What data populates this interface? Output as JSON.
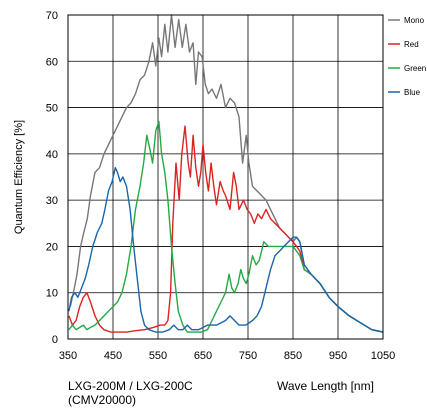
{
  "chart_data": {
    "type": "line",
    "title": "",
    "xlabel": "Wave Length [nm]",
    "ylabel": "Quantum Efficiency [%]",
    "xlim": [
      350,
      1050
    ],
    "ylim": [
      0,
      70
    ],
    "x_ticks": [
      350,
      450,
      550,
      650,
      750,
      850,
      950,
      1050
    ],
    "y_ticks": [
      0,
      10,
      20,
      30,
      40,
      50,
      60,
      70
    ],
    "grid": true,
    "legend_position": "right",
    "series": [
      {
        "name": "Mono",
        "color": "#777777",
        "points": [
          [
            355,
            7
          ],
          [
            362,
            10
          ],
          [
            370,
            14
          ],
          [
            378,
            20
          ],
          [
            385,
            23
          ],
          [
            393,
            26
          ],
          [
            400,
            31
          ],
          [
            410,
            36
          ],
          [
            420,
            37
          ],
          [
            430,
            40
          ],
          [
            440,
            42
          ],
          [
            450,
            44
          ],
          [
            460,
            46
          ],
          [
            470,
            48
          ],
          [
            480,
            50
          ],
          [
            490,
            51
          ],
          [
            500,
            53
          ],
          [
            510,
            56
          ],
          [
            520,
            57
          ],
          [
            530,
            60
          ],
          [
            538,
            64
          ],
          [
            545,
            59
          ],
          [
            552,
            65
          ],
          [
            558,
            61
          ],
          [
            565,
            68
          ],
          [
            572,
            62
          ],
          [
            580,
            70
          ],
          [
            588,
            63
          ],
          [
            596,
            69
          ],
          [
            604,
            63
          ],
          [
            612,
            68
          ],
          [
            620,
            62
          ],
          [
            628,
            64
          ],
          [
            634,
            55
          ],
          [
            640,
            62
          ],
          [
            648,
            61
          ],
          [
            655,
            55
          ],
          [
            662,
            53
          ],
          [
            670,
            54
          ],
          [
            680,
            52
          ],
          [
            690,
            55
          ],
          [
            700,
            50
          ],
          [
            710,
            52
          ],
          [
            720,
            51
          ],
          [
            730,
            48
          ],
          [
            738,
            38
          ],
          [
            746,
            44
          ],
          [
            752,
            38
          ],
          [
            760,
            33
          ],
          [
            770,
            32
          ],
          [
            780,
            31
          ],
          [
            790,
            30
          ],
          [
            800,
            28
          ],
          [
            810,
            26
          ],
          [
            820,
            24
          ],
          [
            830,
            23
          ],
          [
            840,
            22
          ],
          [
            850,
            21
          ],
          [
            858,
            22
          ],
          [
            865,
            21
          ],
          [
            875,
            16
          ],
          [
            890,
            14
          ],
          [
            910,
            12
          ],
          [
            930,
            9
          ],
          [
            950,
            7
          ],
          [
            975,
            5
          ],
          [
            1000,
            3.5
          ],
          [
            1025,
            2
          ],
          [
            1050,
            1.5
          ]
        ]
      },
      {
        "name": "Red",
        "color": "#dd2222",
        "points": [
          [
            352,
            5
          ],
          [
            360,
            3
          ],
          [
            368,
            4
          ],
          [
            376,
            7
          ],
          [
            384,
            9
          ],
          [
            392,
            10
          ],
          [
            400,
            8
          ],
          [
            410,
            5
          ],
          [
            420,
            3
          ],
          [
            430,
            2
          ],
          [
            445,
            1.5
          ],
          [
            460,
            1.5
          ],
          [
            480,
            1.5
          ],
          [
            500,
            1.8
          ],
          [
            520,
            2
          ],
          [
            540,
            2.5
          ],
          [
            555,
            3
          ],
          [
            565,
            3
          ],
          [
            572,
            4
          ],
          [
            578,
            10
          ],
          [
            583,
            25
          ],
          [
            590,
            38
          ],
          [
            597,
            30
          ],
          [
            603,
            40
          ],
          [
            610,
            46
          ],
          [
            617,
            38
          ],
          [
            622,
            35
          ],
          [
            628,
            44
          ],
          [
            634,
            37
          ],
          [
            640,
            33
          ],
          [
            645,
            36
          ],
          [
            650,
            42
          ],
          [
            656,
            36
          ],
          [
            662,
            32
          ],
          [
            668,
            38
          ],
          [
            674,
            33
          ],
          [
            680,
            29
          ],
          [
            688,
            34
          ],
          [
            695,
            32
          ],
          [
            700,
            31
          ],
          [
            710,
            28
          ],
          [
            718,
            36
          ],
          [
            724,
            33
          ],
          [
            730,
            28
          ],
          [
            740,
            30
          ],
          [
            748,
            28
          ],
          [
            756,
            27
          ],
          [
            764,
            25
          ],
          [
            772,
            27
          ],
          [
            780,
            26
          ],
          [
            790,
            28
          ],
          [
            800,
            26
          ],
          [
            810,
            25
          ],
          [
            820,
            24
          ],
          [
            830,
            23
          ],
          [
            840,
            22
          ],
          [
            850,
            21
          ],
          [
            858,
            20
          ],
          [
            865,
            19
          ],
          [
            875,
            15
          ],
          [
            890,
            14
          ],
          [
            910,
            12
          ],
          [
            930,
            9
          ],
          [
            950,
            7
          ],
          [
            975,
            5
          ],
          [
            1000,
            3.5
          ],
          [
            1025,
            2
          ],
          [
            1050,
            1.5
          ]
        ]
      },
      {
        "name": "Green",
        "color": "#22aa44",
        "points": [
          [
            352,
            2
          ],
          [
            360,
            3
          ],
          [
            368,
            2
          ],
          [
            376,
            2.5
          ],
          [
            384,
            3
          ],
          [
            392,
            2
          ],
          [
            400,
            2.5
          ],
          [
            410,
            3
          ],
          [
            420,
            4
          ],
          [
            430,
            5
          ],
          [
            440,
            6
          ],
          [
            450,
            7
          ],
          [
            460,
            8
          ],
          [
            470,
            10
          ],
          [
            480,
            14
          ],
          [
            490,
            20
          ],
          [
            500,
            28
          ],
          [
            510,
            33
          ],
          [
            518,
            38
          ],
          [
            525,
            44
          ],
          [
            532,
            41
          ],
          [
            538,
            38
          ],
          [
            545,
            45
          ],
          [
            552,
            47
          ],
          [
            558,
            40
          ],
          [
            565,
            36
          ],
          [
            572,
            30
          ],
          [
            580,
            20
          ],
          [
            588,
            12
          ],
          [
            595,
            6
          ],
          [
            605,
            3
          ],
          [
            615,
            1.5
          ],
          [
            630,
            1.5
          ],
          [
            645,
            1.5
          ],
          [
            660,
            2
          ],
          [
            670,
            4
          ],
          [
            680,
            6
          ],
          [
            690,
            8
          ],
          [
            700,
            10
          ],
          [
            708,
            14
          ],
          [
            714,
            11
          ],
          [
            720,
            10
          ],
          [
            728,
            12
          ],
          [
            734,
            15
          ],
          [
            740,
            13
          ],
          [
            746,
            12
          ],
          [
            752,
            14
          ],
          [
            760,
            18
          ],
          [
            768,
            16
          ],
          [
            775,
            17
          ],
          [
            785,
            21
          ],
          [
            795,
            20
          ],
          [
            805,
            20
          ],
          [
            815,
            20
          ],
          [
            825,
            20
          ],
          [
            835,
            20
          ],
          [
            845,
            20
          ],
          [
            850,
            20
          ],
          [
            858,
            19
          ],
          [
            865,
            18
          ],
          [
            875,
            15
          ],
          [
            890,
            14
          ],
          [
            910,
            12
          ],
          [
            930,
            9
          ],
          [
            950,
            7
          ],
          [
            975,
            5
          ],
          [
            1000,
            3.5
          ],
          [
            1025,
            2
          ],
          [
            1050,
            1.5
          ]
        ]
      },
      {
        "name": "Blue",
        "color": "#1a66aa",
        "points": [
          [
            352,
            6
          ],
          [
            358,
            9
          ],
          [
            365,
            10
          ],
          [
            372,
            9
          ],
          [
            380,
            11
          ],
          [
            388,
            13
          ],
          [
            396,
            16
          ],
          [
            405,
            20
          ],
          [
            415,
            23
          ],
          [
            425,
            25
          ],
          [
            432,
            28
          ],
          [
            440,
            32
          ],
          [
            448,
            34
          ],
          [
            455,
            37
          ],
          [
            460,
            36
          ],
          [
            466,
            34
          ],
          [
            472,
            35
          ],
          [
            480,
            33
          ],
          [
            488,
            28
          ],
          [
            496,
            20
          ],
          [
            505,
            12
          ],
          [
            512,
            6
          ],
          [
            520,
            3
          ],
          [
            530,
            2
          ],
          [
            545,
            1.5
          ],
          [
            560,
            1.5
          ],
          [
            575,
            2
          ],
          [
            585,
            3
          ],
          [
            595,
            2
          ],
          [
            605,
            2
          ],
          [
            615,
            3
          ],
          [
            625,
            2
          ],
          [
            640,
            2
          ],
          [
            660,
            3
          ],
          [
            680,
            3
          ],
          [
            700,
            4
          ],
          [
            710,
            5
          ],
          [
            720,
            4
          ],
          [
            730,
            3
          ],
          [
            745,
            3
          ],
          [
            760,
            4
          ],
          [
            770,
            5
          ],
          [
            780,
            7
          ],
          [
            790,
            11
          ],
          [
            800,
            15
          ],
          [
            810,
            18
          ],
          [
            820,
            19
          ],
          [
            830,
            20
          ],
          [
            840,
            21
          ],
          [
            850,
            22
          ],
          [
            858,
            22
          ],
          [
            865,
            21
          ],
          [
            875,
            16
          ],
          [
            890,
            14
          ],
          [
            910,
            12
          ],
          [
            930,
            9
          ],
          [
            950,
            7
          ],
          [
            975,
            5
          ],
          [
            1000,
            3.5
          ],
          [
            1025,
            2
          ],
          [
            1050,
            1.5
          ]
        ]
      }
    ]
  }
}
